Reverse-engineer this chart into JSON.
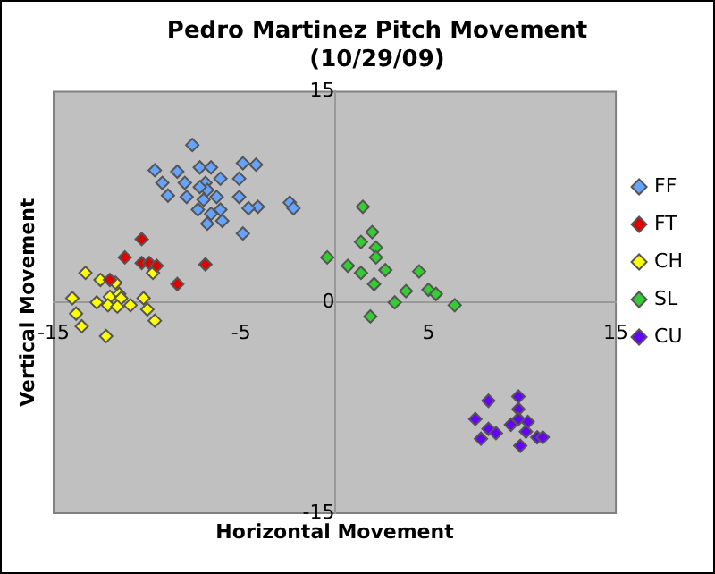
{
  "chart_data": {
    "type": "scatter",
    "title": "Pedro Martinez Pitch Movement\n(10/29/09)",
    "xlabel": "Horizontal Movement",
    "ylabel": "Vertical Movement",
    "xlim": [
      -15,
      15
    ],
    "ylim": [
      -15,
      15
    ],
    "xticks": [
      -15,
      -5,
      5,
      15
    ],
    "yticks": [
      -15,
      0,
      15
    ],
    "legend": "right",
    "marker": "diamond",
    "series": [
      {
        "name": "FF",
        "color": "#66a3ff",
        "x": [
          -7.6,
          -9.6,
          -8.4,
          -7.2,
          -6.6,
          -4.9,
          -4.2,
          -9.2,
          -8.0,
          -6.9,
          -6.1,
          -5.1,
          -8.9,
          -7.9,
          -7.0,
          -6.3,
          -5.1,
          -4.1,
          -4.6,
          -2.4,
          -2.2,
          -7.3,
          -6.6,
          -6.1,
          -6.8,
          -6.0,
          -4.9,
          -6.8,
          -7.2
        ],
        "values": [
          11.2,
          9.4,
          9.3,
          9.6,
          9.6,
          9.9,
          9.8,
          8.5,
          8.5,
          8.5,
          8.8,
          8.8,
          7.6,
          7.5,
          7.3,
          7.5,
          7.5,
          6.8,
          6.7,
          7.1,
          6.7,
          6.6,
          6.3,
          6.6,
          5.6,
          5.8,
          4.9,
          8.0,
          8.2
        ]
      },
      {
        "name": "FT",
        "color": "#e00000",
        "x": [
          -10.3,
          -11.2,
          -10.3,
          -9.9,
          -9.5,
          -6.9,
          -8.4,
          -12.0
        ],
        "values": [
          4.5,
          3.2,
          2.8,
          2.8,
          2.6,
          2.7,
          1.3,
          1.6
        ]
      },
      {
        "name": "CH",
        "color": "#ffff00",
        "x": [
          -13.3,
          -12.5,
          -11.7,
          -9.7,
          -14.0,
          -12.7,
          -12.0,
          -11.5,
          -11.4,
          -10.9,
          -12.1,
          -11.6,
          -10.2,
          -10.0,
          -9.6,
          -13.8,
          -13.5,
          -12.2
        ],
        "values": [
          2.1,
          1.6,
          1.4,
          2.1,
          0.3,
          0,
          0.4,
          0.6,
          0.3,
          -0.2,
          -0.2,
          -0.3,
          0.3,
          -0.5,
          -1.3,
          -0.8,
          -1.7,
          -2.4
        ]
      },
      {
        "name": "SL",
        "color": "#33cc33",
        "x": [
          1.5,
          2.0,
          1.4,
          2.2,
          2.2,
          -0.4,
          0.7,
          1.4,
          2.7,
          4.5,
          2.1,
          3.8,
          5.0,
          5.4,
          3.2,
          6.4,
          1.9
        ],
        "values": [
          6.8,
          5.0,
          4.3,
          3.9,
          3.2,
          3.2,
          2.6,
          2.1,
          2.3,
          2.2,
          1.3,
          0.8,
          0.9,
          0.6,
          0,
          -0.2,
          -1.0
        ]
      },
      {
        "name": "CU",
        "color": "#6600ff",
        "x": [
          8.2,
          9.8,
          7.5,
          9.8,
          9.8,
          8.2,
          8.6,
          9.4,
          10.3,
          10.2,
          7.8,
          10.8,
          11.1,
          9.9
        ],
        "values": [
          -7.0,
          -6.7,
          -8.3,
          -7.6,
          -8.3,
          -9.0,
          -9.3,
          -8.7,
          -8.5,
          -9.2,
          -9.7,
          -9.6,
          -9.6,
          -10.2
        ]
      }
    ]
  }
}
